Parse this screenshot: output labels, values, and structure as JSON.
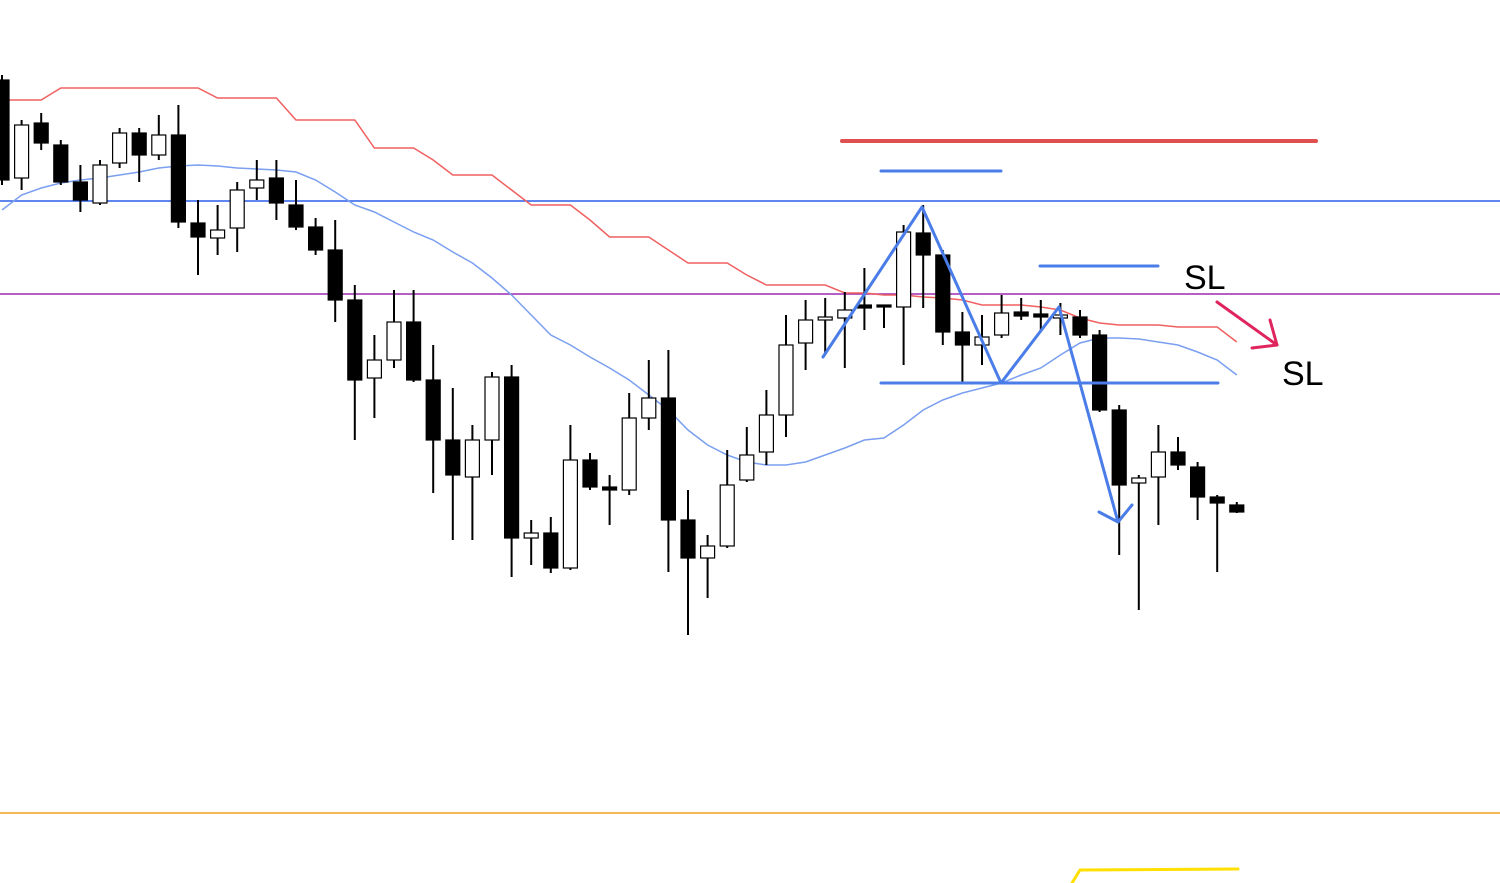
{
  "chart_data": {
    "type": "candlestick",
    "ylim": [
      117,
      1000
    ],
    "up_color": "#ffffff",
    "down_color": "#000000",
    "open": [
      920,
      822,
      877,
      855,
      818,
      797,
      837,
      867,
      845,
      865,
      777,
      762,
      772,
      812,
      822,
      795,
      773,
      750,
      700,
      622,
      640,
      678,
      620,
      560,
      523,
      560,
      623,
      462,
      467,
      432,
      540,
      513,
      510,
      582,
      602,
      480,
      442,
      454,
      520,
      548,
      585,
      657,
      680,
      682,
      695,
      695,
      693,
      767,
      745,
      668,
      655,
      665,
      688,
      686,
      682,
      683,
      665,
      590,
      517,
      523,
      548,
      533,
      503,
      495
    ],
    "high": [
      925,
      880,
      887,
      860,
      835,
      840,
      872,
      872,
      885,
      895,
      800,
      795,
      818,
      840,
      840,
      820,
      782,
      780,
      715,
      665,
      710,
      710,
      655,
      612,
      575,
      628,
      635,
      480,
      483,
      575,
      547,
      525,
      607,
      640,
      650,
      510,
      465,
      550,
      573,
      610,
      685,
      700,
      702,
      708,
      732,
      695,
      775,
      795,
      750,
      688,
      685,
      705,
      702,
      700,
      697,
      690,
      670,
      595,
      525,
      575,
      563,
      538,
      505,
      498
    ],
    "low": [
      815,
      810,
      850,
      815,
      788,
      795,
      832,
      818,
      840,
      772,
      725,
      745,
      748,
      800,
      780,
      770,
      745,
      678,
      560,
      582,
      632,
      618,
      507,
      460,
      460,
      525,
      423,
      435,
      427,
      430,
      510,
      475,
      505,
      570,
      428,
      365,
      402,
      452,
      518,
      535,
      563,
      630,
      645,
      632,
      670,
      672,
      635,
      692,
      655,
      617,
      635,
      662,
      680,
      670,
      665,
      662,
      588,
      445,
      390,
      475,
      530,
      480,
      428,
      487
    ],
    "close": [
      820,
      875,
      857,
      818,
      800,
      835,
      867,
      845,
      865,
      778,
      763,
      770,
      810,
      820,
      797,
      773,
      750,
      700,
      620,
      640,
      678,
      620,
      560,
      525,
      560,
      623,
      462,
      467,
      432,
      540,
      513,
      510,
      582,
      602,
      480,
      442,
      454,
      515,
      545,
      585,
      655,
      680,
      683,
      690,
      692,
      693,
      768,
      745,
      668,
      655,
      663,
      687,
      684,
      683,
      685,
      665,
      590,
      515,
      522,
      548,
      535,
      503,
      497,
      488
    ],
    "lines": [
      {
        "color": "#f06060",
        "values": [
          900,
          900,
          900,
          912,
          912,
          912,
          912,
          912,
          912,
          912,
          912,
          902,
          902,
          902,
          902,
          880,
          880,
          880,
          880,
          852,
          852,
          852,
          840,
          825,
          825,
          825,
          810,
          795,
          795,
          795,
          780,
          763,
          763,
          763,
          750,
          737,
          737,
          737,
          725,
          715,
          715,
          715,
          715,
          707,
          707,
          705,
          705,
          703,
          702,
          700,
          695,
          695,
          695,
          693,
          690,
          682,
          677,
          675,
          675,
          675,
          673,
          673,
          673,
          658
        ]
      },
      {
        "color": "#7a9ff0",
        "values": [
          790,
          805,
          812,
          817,
          820,
          822,
          825,
          828,
          832,
          834,
          835,
          834,
          832,
          831,
          830,
          828,
          820,
          808,
          795,
          788,
          778,
          768,
          760,
          748,
          737,
          722,
          705,
          685,
          665,
          655,
          643,
          632,
          620,
          605,
          590,
          570,
          555,
          545,
          538,
          535,
          535,
          538,
          545,
          552,
          560,
          562,
          575,
          590,
          600,
          607,
          612,
          617,
          625,
          632,
          645,
          657,
          662,
          662,
          661,
          658,
          655,
          648,
          640,
          625
        ]
      }
    ],
    "hlines": [
      {
        "value": 799,
        "color": "#2a5ee8"
      },
      {
        "value": 706,
        "color": "#9a2ab0"
      },
      {
        "value": 187,
        "color": "#f0a020"
      }
    ],
    "annotations": [
      "SL",
      "SL"
    ]
  }
}
